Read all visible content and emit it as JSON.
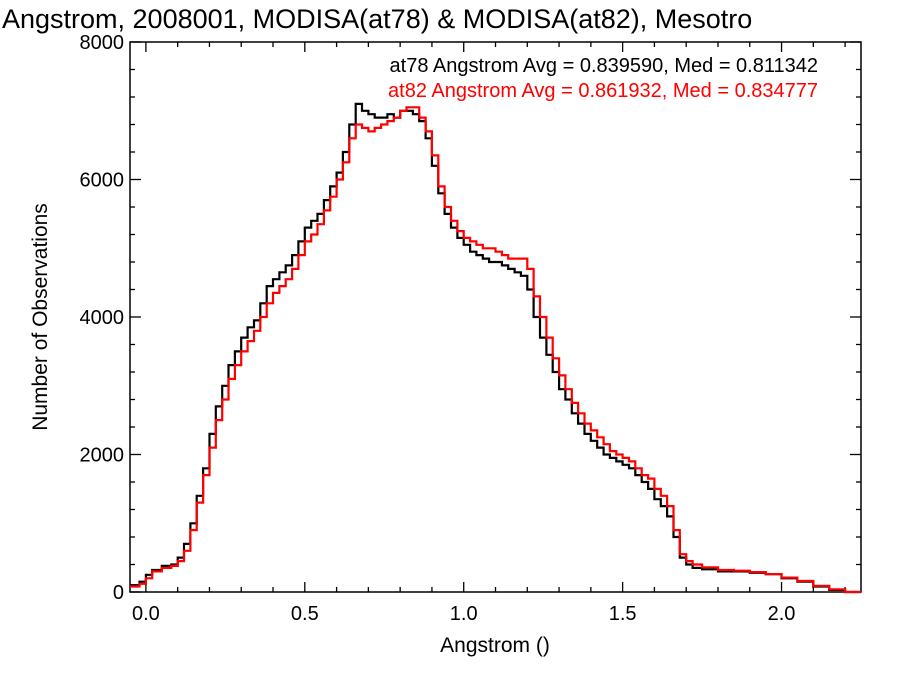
{
  "chart_data": {
    "type": "line",
    "title": "Angstrom, 2008001, MODISA(at78) & MODISA(at82), Mesotro",
    "xlabel": "Angstrom ()",
    "ylabel": "Number of Observations",
    "xlim": [
      -0.05,
      2.25
    ],
    "ylim": [
      0,
      8000
    ],
    "x_ticks": [
      0.0,
      0.5,
      1.0,
      1.5,
      2.0
    ],
    "x_tick_labels": [
      "0.0",
      "0.5",
      "1.0",
      "1.5",
      "2.0"
    ],
    "y_ticks": [
      0,
      2000,
      4000,
      6000,
      8000
    ],
    "y_tick_labels": [
      "0",
      "2000",
      "4000",
      "6000",
      "8000"
    ],
    "grid": false,
    "legend_position": "top-right",
    "annotations": [
      {
        "text": "at78 Angstrom Avg = 0.839590, Med = 0.811342",
        "color": "#000000"
      },
      {
        "text": "at82 Angstrom Avg = 0.861932, Med = 0.834777",
        "color": "#ff0000"
      }
    ],
    "step": true,
    "series": [
      {
        "color": "#000000",
        "x": [
          -0.05,
          -0.02,
          0.0,
          0.02,
          0.05,
          0.08,
          0.1,
          0.12,
          0.14,
          0.16,
          0.18,
          0.2,
          0.22,
          0.24,
          0.26,
          0.28,
          0.3,
          0.32,
          0.34,
          0.36,
          0.38,
          0.4,
          0.42,
          0.44,
          0.46,
          0.48,
          0.5,
          0.52,
          0.54,
          0.56,
          0.58,
          0.6,
          0.62,
          0.64,
          0.66,
          0.68,
          0.7,
          0.72,
          0.74,
          0.76,
          0.78,
          0.8,
          0.82,
          0.84,
          0.86,
          0.88,
          0.9,
          0.92,
          0.94,
          0.96,
          0.98,
          1.0,
          1.02,
          1.04,
          1.06,
          1.08,
          1.1,
          1.12,
          1.14,
          1.16,
          1.18,
          1.2,
          1.22,
          1.24,
          1.26,
          1.28,
          1.3,
          1.32,
          1.34,
          1.36,
          1.38,
          1.4,
          1.42,
          1.44,
          1.46,
          1.48,
          1.5,
          1.52,
          1.54,
          1.56,
          1.58,
          1.6,
          1.62,
          1.64,
          1.66,
          1.68,
          1.7,
          1.72,
          1.75,
          1.8,
          1.85,
          1.9,
          1.95,
          2.0,
          2.05,
          2.1,
          2.15,
          2.2,
          2.25
        ],
        "y": [
          100,
          150,
          250,
          320,
          380,
          400,
          500,
          700,
          1000,
          1400,
          1800,
          2300,
          2700,
          3000,
          3300,
          3500,
          3700,
          3850,
          3950,
          4200,
          4450,
          4550,
          4650,
          4750,
          4900,
          5100,
          5300,
          5400,
          5500,
          5700,
          5900,
          6100,
          6400,
          6800,
          7100,
          7000,
          6950,
          6900,
          6900,
          6950,
          6900,
          7000,
          7000,
          6950,
          6850,
          6600,
          6200,
          5800,
          5500,
          5300,
          5150,
          5050,
          4950,
          4900,
          4850,
          4800,
          4800,
          4750,
          4700,
          4650,
          4600,
          4400,
          4000,
          3700,
          3450,
          3200,
          2950,
          2800,
          2600,
          2450,
          2300,
          2200,
          2100,
          2000,
          1950,
          1900,
          1850,
          1800,
          1700,
          1600,
          1500,
          1350,
          1250,
          1100,
          800,
          500,
          400,
          350,
          330,
          300,
          300,
          280,
          260,
          200,
          150,
          80,
          30,
          0,
          0
        ]
      },
      {
        "color": "#ff0000",
        "x": [
          -0.05,
          -0.02,
          0.0,
          0.02,
          0.05,
          0.08,
          0.1,
          0.12,
          0.14,
          0.16,
          0.18,
          0.2,
          0.22,
          0.24,
          0.26,
          0.28,
          0.3,
          0.32,
          0.34,
          0.36,
          0.38,
          0.4,
          0.42,
          0.44,
          0.46,
          0.48,
          0.5,
          0.52,
          0.54,
          0.56,
          0.58,
          0.6,
          0.62,
          0.64,
          0.66,
          0.68,
          0.7,
          0.72,
          0.74,
          0.76,
          0.78,
          0.8,
          0.82,
          0.84,
          0.86,
          0.88,
          0.9,
          0.92,
          0.94,
          0.96,
          0.98,
          1.0,
          1.02,
          1.04,
          1.06,
          1.08,
          1.1,
          1.12,
          1.14,
          1.16,
          1.18,
          1.2,
          1.22,
          1.24,
          1.26,
          1.28,
          1.3,
          1.32,
          1.34,
          1.36,
          1.38,
          1.4,
          1.42,
          1.44,
          1.46,
          1.48,
          1.5,
          1.52,
          1.54,
          1.56,
          1.58,
          1.6,
          1.62,
          1.64,
          1.66,
          1.68,
          1.7,
          1.72,
          1.75,
          1.8,
          1.85,
          1.9,
          1.95,
          2.0,
          2.05,
          2.1,
          2.15,
          2.2,
          2.25
        ],
        "y": [
          80,
          120,
          200,
          300,
          350,
          380,
          450,
          600,
          900,
          1300,
          1700,
          2100,
          2500,
          2800,
          3100,
          3300,
          3500,
          3650,
          3800,
          4000,
          4200,
          4350,
          4450,
          4550,
          4700,
          4900,
          5100,
          5200,
          5350,
          5550,
          5750,
          6000,
          6250,
          6600,
          6800,
          6750,
          6700,
          6750,
          6800,
          6850,
          6900,
          7000,
          7050,
          7050,
          6900,
          6700,
          6350,
          5900,
          5600,
          5400,
          5250,
          5150,
          5100,
          5050,
          5000,
          5000,
          4950,
          4900,
          4850,
          4850,
          4850,
          4700,
          4300,
          4000,
          3700,
          3400,
          3150,
          2950,
          2750,
          2600,
          2450,
          2350,
          2250,
          2150,
          2050,
          2000,
          1950,
          1900,
          1800,
          1700,
          1650,
          1500,
          1400,
          1250,
          900,
          550,
          450,
          400,
          360,
          320,
          310,
          290,
          260,
          210,
          160,
          90,
          40,
          0,
          0
        ]
      }
    ]
  }
}
